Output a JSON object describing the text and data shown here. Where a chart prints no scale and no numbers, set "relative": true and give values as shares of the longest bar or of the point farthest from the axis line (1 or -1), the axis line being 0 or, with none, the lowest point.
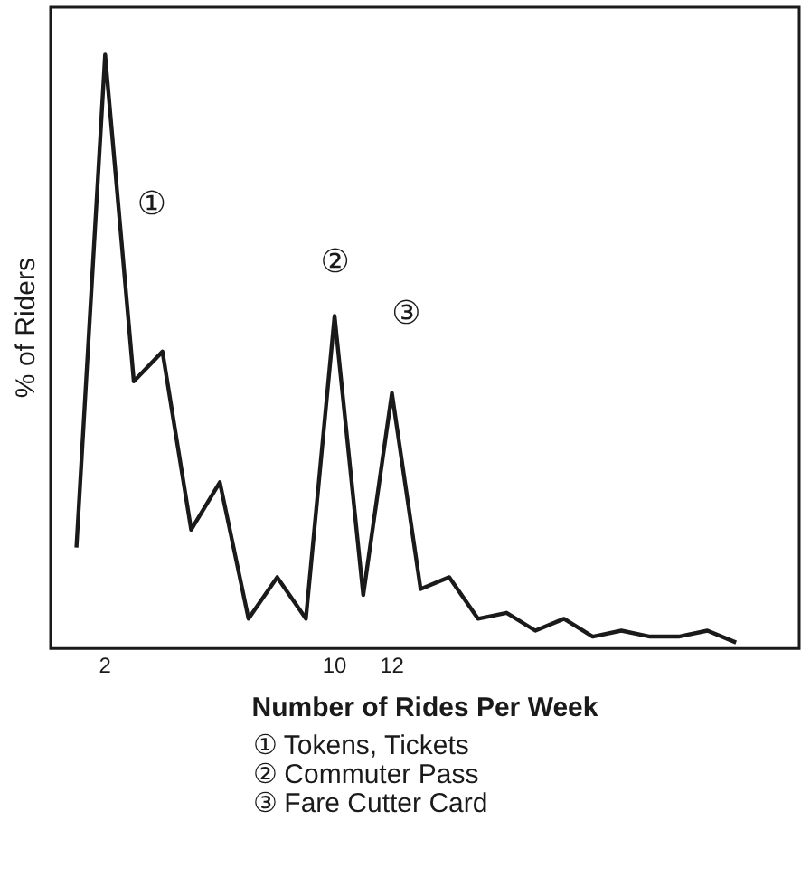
{
  "chart_data": {
    "type": "line",
    "relative": true,
    "xlabel": "Number of Rides Per Week",
    "ylabel": "% of Riders",
    "x": [
      1,
      2,
      3,
      4,
      5,
      6,
      7,
      8,
      9,
      10,
      11,
      12,
      13,
      14,
      15,
      16,
      17,
      18,
      19,
      20,
      21,
      22,
      23,
      24
    ],
    "values": [
      0.17,
      1,
      0.45,
      0.5,
      0.2,
      0.28,
      0.05,
      0.12,
      0.05,
      0.56,
      0.09,
      0.43,
      0.1,
      0.12,
      0.05,
      0.06,
      0.03,
      0.05,
      0.02,
      0.03,
      0.02,
      0.02,
      0.03,
      0.01
    ],
    "color": "#1a1a1a",
    "xlim": [
      0.1,
      26.2
    ],
    "xticks": [
      2,
      10,
      12
    ],
    "grid": false,
    "legend": false,
    "marker": "none",
    "line_style": "solid",
    "annotations": [
      "①",
      "②",
      "③",
      "① Tokens, Tickets",
      "② Commuter Pass",
      "③ Fare Cutter Card"
    ]
  }
}
